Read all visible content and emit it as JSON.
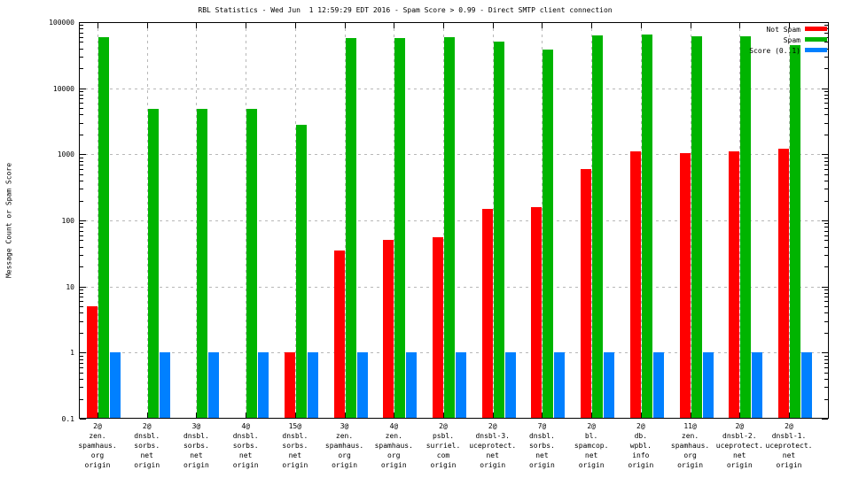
{
  "title": "RBL Statistics - Wed Jun  1 12:59:29 EDT 2016 - Spam Score > 0.99 - Direct SMTP client connection",
  "chart_data": {
    "type": "bar",
    "y_scale": "log",
    "ylabel": "Message Count or Spam Score",
    "ylim": [
      0.1,
      100000
    ],
    "yticks": [
      100000,
      10000,
      1000,
      100,
      10,
      1,
      0.1
    ],
    "ytick_labels": [
      "100000",
      "10000",
      "1000",
      "100",
      "10",
      "1",
      "0.1"
    ],
    "grid": true,
    "legend_position": "top-right-inside",
    "frame_color": "#000000",
    "grid_color": "#b8b8b8",
    "background_color": "#ffffff",
    "categories": [
      [
        "2@",
        "zen.",
        "spamhaus.",
        "org",
        "origin"
      ],
      [
        "2@",
        "dnsbl.",
        "sorbs.",
        "net",
        "origin"
      ],
      [
        "3@",
        "dnsbl.",
        "sorbs.",
        "net",
        "origin"
      ],
      [
        "4@",
        "dnsbl.",
        "sorbs.",
        "net",
        "origin"
      ],
      [
        "15@",
        "dnsbl.",
        "sorbs.",
        "net",
        "origin"
      ],
      [
        "3@",
        "zen.",
        "spamhaus.",
        "org",
        "origin"
      ],
      [
        "4@",
        "zen.",
        "spamhaus.",
        "org",
        "origin"
      ],
      [
        "2@",
        "psbl.",
        "surriel.",
        "com",
        "origin"
      ],
      [
        "2@",
        "dnsbl-3.",
        "uceprotect.",
        "net",
        "origin"
      ],
      [
        "7@",
        "dnsbl.",
        "sorbs.",
        "net",
        "origin"
      ],
      [
        "2@",
        "bl.",
        "spamcop.",
        "net",
        "origin"
      ],
      [
        "2@",
        "db.",
        "wpbl.",
        "info",
        "origin"
      ],
      [
        "11@",
        "zen.",
        "spamhaus.",
        "org",
        "origin"
      ],
      [
        "2@",
        "dnsbl-2.",
        "uceprotect.",
        "net",
        "origin"
      ],
      [
        "2@",
        "dnsbl-1.",
        "uceprotect.",
        "net",
        "origin"
      ]
    ],
    "series": [
      {
        "name": "Not Spam",
        "color": "#ff0000",
        "values": [
          5,
          null,
          null,
          null,
          1,
          35,
          50,
          55,
          150,
          160,
          600,
          1100,
          1050,
          1100,
          1200
        ]
      },
      {
        "name": "Spam",
        "color": "#00b400",
        "values": [
          60000,
          4800,
          4800,
          4800,
          2800,
          58000,
          57000,
          60000,
          50000,
          38000,
          63000,
          65000,
          61000,
          61000,
          45000
        ]
      },
      {
        "name": "Score (0..1)",
        "color": "#0080ff",
        "values": [
          1,
          1,
          1,
          1,
          1,
          1,
          1,
          1,
          1,
          1,
          1,
          1,
          1,
          1,
          1
        ]
      }
    ]
  }
}
